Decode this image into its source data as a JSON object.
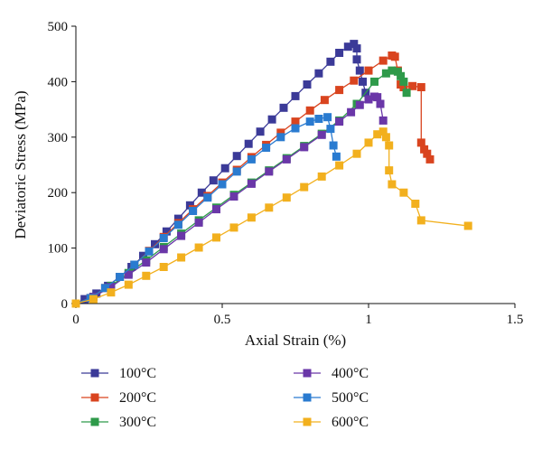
{
  "chart_data": {
    "type": "line",
    "title": "",
    "xlabel": "Axial Strain (%)",
    "ylabel": "Deviatoric Stress (MPa)",
    "xlim": [
      0,
      1.5
    ],
    "ylim": [
      0,
      500
    ],
    "xticks": [
      0,
      0.5,
      1,
      1.5
    ],
    "xtick_labels": [
      "0",
      "0.5",
      "1",
      "1.5"
    ],
    "yticks": [
      0,
      100,
      200,
      300,
      400,
      500
    ],
    "ytick_labels": [
      "0",
      "100",
      "200",
      "300",
      "400",
      "500"
    ],
    "grid": false,
    "legend_position": "bottom",
    "series": [
      {
        "name": "100°C",
        "color": "#3b3a98",
        "x": [
          0,
          0.03,
          0.07,
          0.11,
          0.15,
          0.19,
          0.23,
          0.27,
          0.31,
          0.35,
          0.39,
          0.43,
          0.47,
          0.51,
          0.55,
          0.59,
          0.63,
          0.67,
          0.71,
          0.75,
          0.79,
          0.83,
          0.87,
          0.9,
          0.93,
          0.95,
          0.96,
          0.96,
          0.97,
          0.98,
          0.99
        ],
        "y": [
          0,
          8,
          18,
          32,
          48,
          66,
          86,
          107,
          130,
          153,
          177,
          200,
          222,
          244,
          266,
          288,
          310,
          332,
          353,
          374,
          395,
          415,
          436,
          452,
          463,
          468,
          460,
          440,
          420,
          400,
          380
        ]
      },
      {
        "name": "200°C",
        "color": "#d9441f",
        "x": [
          0,
          0.05,
          0.1,
          0.15,
          0.2,
          0.25,
          0.3,
          0.35,
          0.4,
          0.45,
          0.5,
          0.55,
          0.6,
          0.65,
          0.7,
          0.75,
          0.8,
          0.85,
          0.9,
          0.95,
          1.0,
          1.05,
          1.08,
          1.09,
          1.1,
          1.11,
          1.12,
          1.15,
          1.18,
          1.18,
          1.19,
          1.2,
          1.21
        ],
        "y": [
          0,
          10,
          28,
          48,
          70,
          95,
          120,
          145,
          170,
          194,
          218,
          241,
          264,
          286,
          308,
          328,
          348,
          367,
          385,
          402,
          420,
          438,
          447,
          445,
          420,
          395,
          390,
          392,
          390,
          290,
          278,
          270,
          260
        ]
      },
      {
        "name": "300°C",
        "color": "#2e9a4a",
        "x": [
          0,
          0.06,
          0.12,
          0.18,
          0.24,
          0.3,
          0.36,
          0.42,
          0.48,
          0.54,
          0.6,
          0.66,
          0.72,
          0.78,
          0.84,
          0.9,
          0.96,
          1.02,
          1.06,
          1.08,
          1.1,
          1.11,
          1.12,
          1.13
        ],
        "y": [
          0,
          12,
          32,
          55,
          78,
          102,
          126,
          150,
          173,
          196,
          218,
          240,
          262,
          284,
          306,
          330,
          360,
          400,
          415,
          420,
          418,
          410,
          400,
          380
        ]
      },
      {
        "name": "400°C",
        "color": "#6a37a8",
        "x": [
          0,
          0.06,
          0.12,
          0.18,
          0.24,
          0.3,
          0.36,
          0.42,
          0.48,
          0.54,
          0.6,
          0.66,
          0.72,
          0.78,
          0.84,
          0.9,
          0.94,
          0.97,
          1.0,
          1.02,
          1.03,
          1.04,
          1.05
        ],
        "y": [
          0,
          12,
          30,
          52,
          74,
          98,
          122,
          146,
          170,
          193,
          216,
          238,
          260,
          282,
          304,
          328,
          345,
          358,
          368,
          373,
          372,
          360,
          330
        ]
      },
      {
        "name": "500°C",
        "color": "#2a7bd0",
        "x": [
          0,
          0.05,
          0.1,
          0.15,
          0.2,
          0.25,
          0.3,
          0.35,
          0.4,
          0.45,
          0.5,
          0.55,
          0.6,
          0.65,
          0.7,
          0.75,
          0.8,
          0.83,
          0.86,
          0.87,
          0.88,
          0.89
        ],
        "y": [
          0,
          10,
          28,
          48,
          70,
          94,
          118,
          142,
          167,
          191,
          215,
          238,
          260,
          281,
          300,
          316,
          328,
          333,
          336,
          315,
          285,
          265
        ]
      },
      {
        "name": "600°C",
        "color": "#f2b01e",
        "x": [
          0,
          0.06,
          0.12,
          0.18,
          0.24,
          0.3,
          0.36,
          0.42,
          0.48,
          0.54,
          0.6,
          0.66,
          0.72,
          0.78,
          0.84,
          0.9,
          0.96,
          1.0,
          1.03,
          1.05,
          1.06,
          1.07,
          1.07,
          1.08,
          1.12,
          1.16,
          1.18,
          1.34
        ],
        "y": [
          0,
          8,
          20,
          34,
          50,
          66,
          83,
          101,
          119,
          137,
          155,
          173,
          191,
          210,
          229,
          249,
          270,
          290,
          305,
          310,
          300,
          285,
          240,
          215,
          200,
          180,
          150,
          140
        ]
      }
    ]
  }
}
